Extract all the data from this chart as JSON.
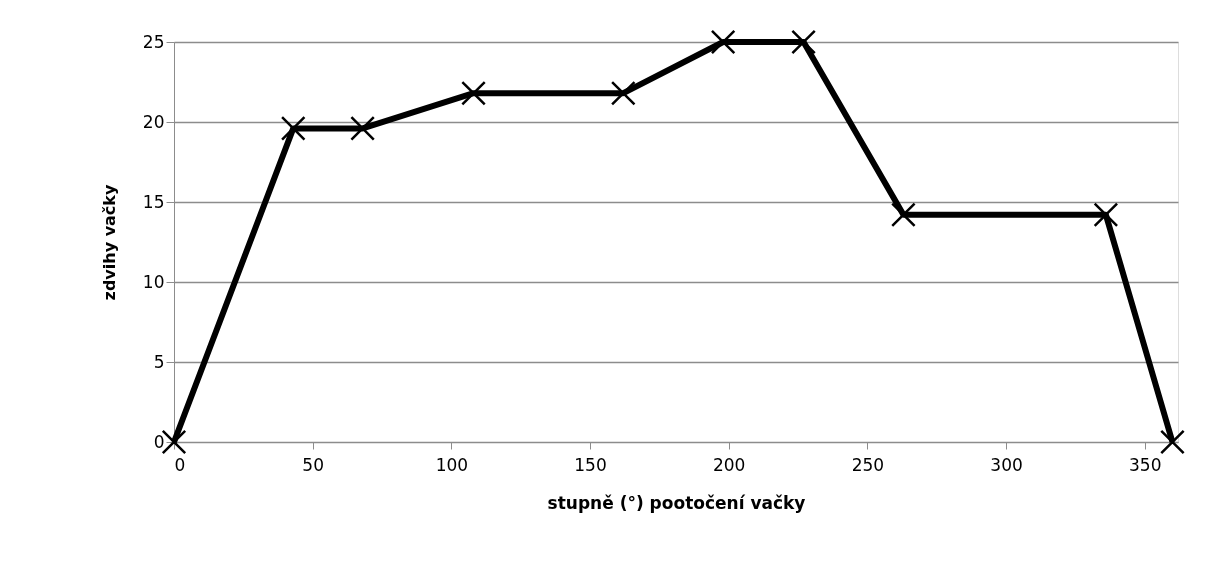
{
  "chart_data": {
    "type": "line",
    "xlabel": "stupně (°) pootočení vačky",
    "ylabel": "zdvihy vačky",
    "x": [
      0,
      43,
      68,
      108,
      162,
      198,
      227,
      263,
      336,
      360
    ],
    "series": [
      {
        "color": "#000000",
        "values": [
          0,
          19.6,
          19.6,
          21.8,
          21.8,
          25,
          25,
          14.2,
          14.2,
          0
        ]
      }
    ],
    "xlim": [
      0,
      362
    ],
    "xticks": [
      0,
      50,
      100,
      150,
      200,
      250,
      300,
      350
    ],
    "ylim": [
      0,
      25
    ],
    "yticks": [
      0,
      5,
      10,
      15,
      20,
      25
    ],
    "grid": "y",
    "legend": false,
    "marker": "cross",
    "line_style": "solid"
  }
}
